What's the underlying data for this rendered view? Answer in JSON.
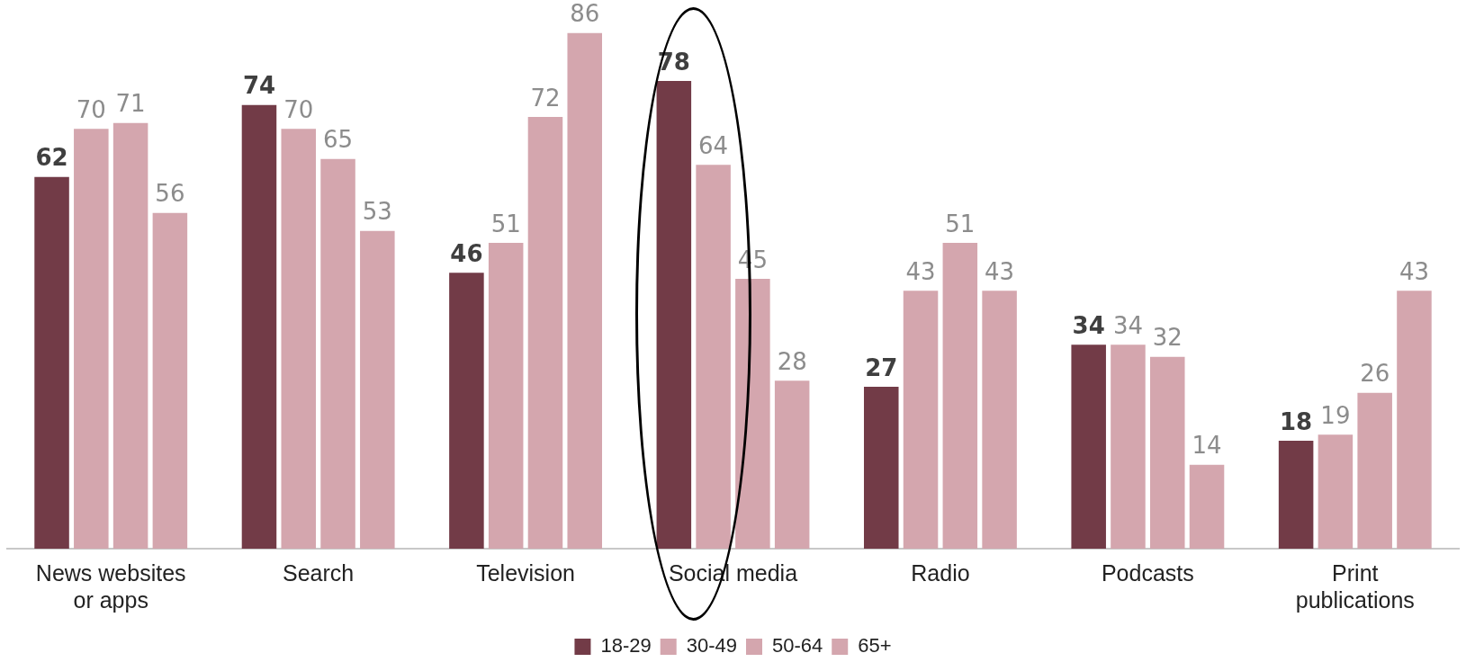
{
  "chart_data": {
    "type": "bar",
    "categories": [
      "News websites or apps",
      "Search",
      "Television",
      "Social media",
      "Radio",
      "Podcasts",
      "Print publications"
    ],
    "series": [
      {
        "name": "18-29",
        "color": "#723b47",
        "values": [
          62,
          74,
          46,
          78,
          27,
          34,
          18
        ]
      },
      {
        "name": "30-49",
        "color": "#d4a6ae",
        "values": [
          70,
          70,
          51,
          64,
          43,
          34,
          19
        ]
      },
      {
        "name": "50-64",
        "color": "#d4a6ae",
        "values": [
          71,
          65,
          72,
          45,
          51,
          32,
          26
        ]
      },
      {
        "name": "65+",
        "color": "#d4a6ae",
        "values": [
          56,
          53,
          86,
          28,
          43,
          14,
          43
        ]
      }
    ],
    "data_labels": true,
    "grid": false,
    "legend": "bottom",
    "tick_labels": "x"
  }
}
